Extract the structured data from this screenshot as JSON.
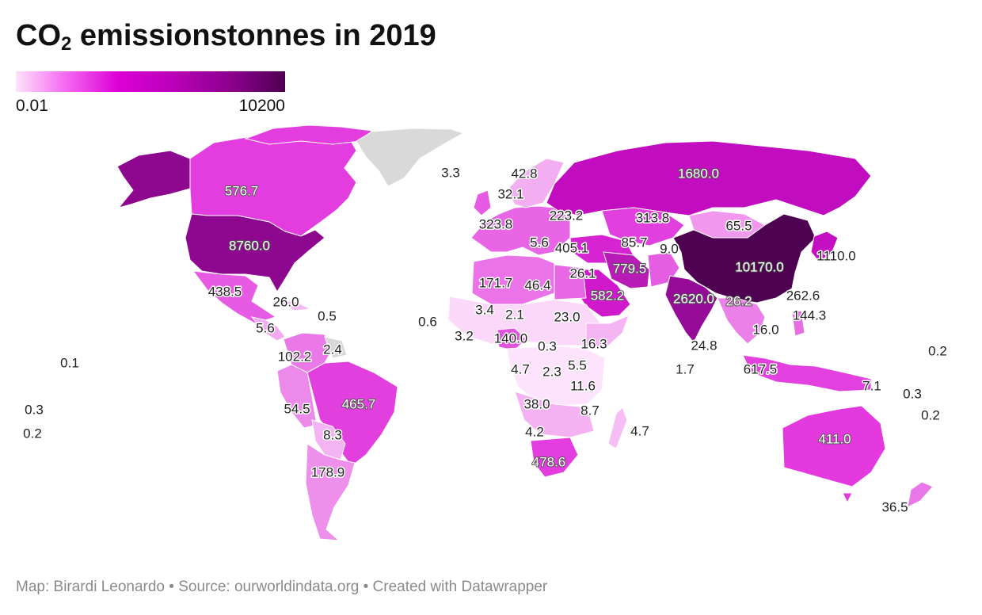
{
  "title": {
    "main": "CO",
    "sub": "2",
    "rest": " emissionstonnes in 2019"
  },
  "legend": {
    "min_label": "0.01",
    "max_label": "10200"
  },
  "footer": {
    "text": "Map: Birardi Leonardo • Source: ourworldindata.org • Created with Datawrapper"
  },
  "colors": {
    "no_data": "#d9d9d9",
    "scale_low": "#fde3fb",
    "scale_high": "#4e0051"
  },
  "labels": {
    "l01": "576.7",
    "l02": "8760.0",
    "l03": "438.5",
    "l04": "26.0",
    "l05": "0.5",
    "l06": "5.6",
    "l07": "102.2",
    "l08": "2.4",
    "l09": "465.7",
    "l10": "54.5",
    "l11": "8.3",
    "l12": "178.9",
    "l13": "0.1",
    "l14": "0.3",
    "l15": "0.2",
    "l16": "3.3",
    "l17": "42.8",
    "l18": "32.1",
    "l19": "323.8",
    "l20": "223.2",
    "l21": "5.6",
    "l22": "405.1",
    "l23": "171.7",
    "l24": "46.4",
    "l25": "26.1",
    "l26": "0.6",
    "l27": "3.4",
    "l28": "2.1",
    "l29": "3.2",
    "l30": "140.0",
    "l31": "23.0",
    "l32": "0.3",
    "l33": "16.3",
    "l34": "4.7",
    "l35": "2.3",
    "l36": "5.5",
    "l37": "11.6",
    "l38": "38.0",
    "l39": "8.7",
    "l40": "4.2",
    "l41": "478.6",
    "l42": "4.7",
    "l43": "1680.0",
    "l44": "313.8",
    "l45": "65.5",
    "l46": "85.7",
    "l47": "9.0",
    "l48": "779.5",
    "l49": "582.2",
    "l50": "10170.0",
    "l51": "1110.0",
    "l52": "2620.0",
    "l53": "26.2",
    "l54": "262.6",
    "l55": "144.3",
    "l56": "16.0",
    "l57": "24.8",
    "l58": "1.7",
    "l59": "617.5",
    "l60": "7.1",
    "l61": "0.3",
    "l62": "0.2",
    "l63": "0.2",
    "l64": "411.0",
    "l65": "36.5"
  }
}
